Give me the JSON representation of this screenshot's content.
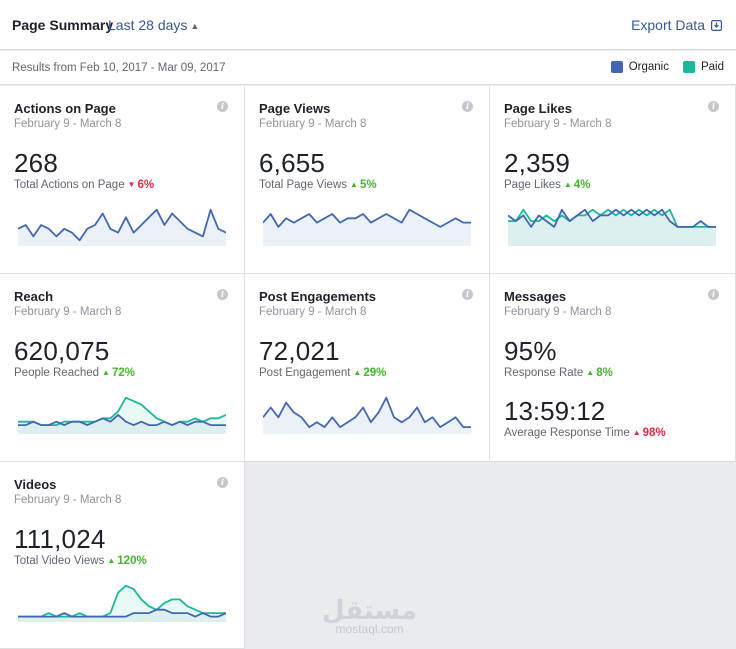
{
  "header": {
    "title": "Page Summary",
    "range_label": "Last 28 days",
    "export_label": "Export Data"
  },
  "subbar": {
    "results_prefix": "Results from ",
    "results_range": "Feb 10, 2017 - Mar 09, 2017",
    "legend": [
      {
        "label": "Organic",
        "color": "#4267b2"
      },
      {
        "label": "Paid",
        "color": "#1bb99a"
      }
    ]
  },
  "colors": {
    "organic": "#4267b2",
    "paid": "#1bb99a",
    "up": "#42b72a",
    "down": "#e02d42"
  },
  "cards": [
    {
      "id": "actions-on-page",
      "title": "Actions on Page",
      "date": "February 9 - March 8",
      "value": "268",
      "metric_label": "Total Actions on Page",
      "change": "6%",
      "direction": "down",
      "organic": [
        4,
        5,
        2,
        5,
        4,
        2,
        4,
        3,
        1,
        4,
        5,
        8,
        4,
        3,
        7,
        3,
        5,
        7,
        9,
        5,
        8,
        6,
        4,
        3,
        2,
        9,
        4,
        3
      ],
      "paid": null
    },
    {
      "id": "page-views",
      "title": "Page Views",
      "date": "February 9 - March 8",
      "value": "6,655",
      "metric_label": "Total Page Views",
      "change": "5%",
      "direction": "up",
      "organic": [
        5,
        7,
        4,
        6,
        5,
        6,
        7,
        5,
        6,
        7,
        5,
        6,
        6,
        7,
        5,
        6,
        7,
        6,
        5,
        8,
        7,
        6,
        5,
        4,
        5,
        6,
        5,
        5
      ],
      "paid": null
    },
    {
      "id": "page-likes",
      "title": "Page Likes",
      "date": "February 9 - March 8",
      "value": "2,359",
      "metric_label": "Page Likes",
      "change": "4%",
      "direction": "up",
      "organic": [
        5,
        4,
        5,
        3,
        5,
        4,
        3,
        6,
        4,
        5,
        6,
        4,
        5,
        5,
        6,
        5,
        6,
        5,
        6,
        5,
        6,
        4,
        3,
        3,
        3,
        4,
        3,
        3
      ],
      "paid": [
        4,
        4,
        6,
        4,
        4,
        5,
        4,
        5,
        4,
        5,
        5,
        6,
        5,
        6,
        5,
        6,
        5,
        6,
        5,
        6,
        5,
        6,
        3,
        3,
        3,
        3,
        3,
        3
      ]
    },
    {
      "id": "reach",
      "title": "Reach",
      "date": "February 9 - March 8",
      "value": "620,075",
      "metric_label": "People Reached",
      "change": "72%",
      "direction": "up",
      "organic": [
        2,
        2,
        3,
        2,
        2,
        3,
        2,
        3,
        3,
        2,
        3,
        4,
        3,
        5,
        3,
        2,
        3,
        2,
        2,
        3,
        2,
        3,
        2,
        3,
        3,
        2,
        2,
        2
      ],
      "paid": [
        3,
        3,
        3,
        2,
        2,
        2,
        3,
        3,
        3,
        3,
        3,
        4,
        4,
        6,
        10,
        9,
        8,
        6,
        4,
        3,
        2,
        3,
        3,
        4,
        3,
        4,
        4,
        5
      ]
    },
    {
      "id": "post-engagements",
      "title": "Post Engagements",
      "date": "February 9 - March 8",
      "value": "72,021",
      "metric_label": "Post Engagement",
      "change": "29%",
      "direction": "up",
      "organic": [
        3,
        5,
        3,
        6,
        4,
        3,
        1,
        2,
        1,
        3,
        1,
        2,
        3,
        5,
        2,
        4,
        7,
        3,
        2,
        3,
        5,
        2,
        3,
        1,
        2,
        3,
        1,
        1
      ],
      "paid": null
    },
    {
      "id": "messages",
      "title": "Messages",
      "date": "February 9 - March 8",
      "value": "95%",
      "metric_label": "Response Rate",
      "change": "8%",
      "direction": "up",
      "value2": "13:59:12",
      "metric_label2": "Average Response Time",
      "change2": "98%",
      "direction2": "up-red",
      "organic": null,
      "paid": null
    },
    {
      "id": "videos",
      "title": "Videos",
      "date": "February 9 - March 8",
      "value": "111,024",
      "metric_label": "Total Video Views",
      "change": "120%",
      "direction": "up",
      "organic": [
        1,
        1,
        1,
        1,
        1,
        1,
        2,
        1,
        1,
        1,
        1,
        1,
        1,
        1,
        1,
        2,
        2,
        2,
        3,
        3,
        2,
        2,
        2,
        1,
        2,
        1,
        1,
        2
      ],
      "paid": [
        1,
        1,
        1,
        1,
        2,
        1,
        1,
        1,
        2,
        1,
        1,
        1,
        2,
        8,
        10,
        9,
        6,
        4,
        3,
        5,
        6,
        6,
        4,
        3,
        2,
        2,
        2,
        2
      ]
    }
  ],
  "watermark": {
    "arabic": "مستقل",
    "latin": "mostaql.com"
  }
}
